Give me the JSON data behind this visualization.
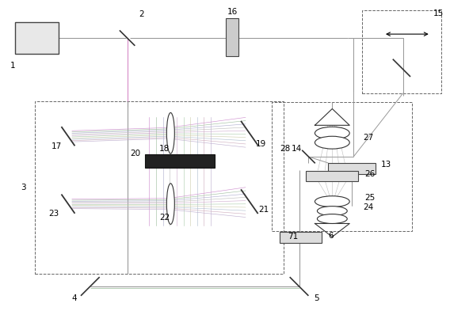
{
  "fig_width": 5.68,
  "fig_height": 4.12,
  "dpi": 100,
  "bg_color": "#ffffff",
  "lc": "#555555",
  "beam_colors": [
    "#cc88cc",
    "#99bb99",
    "#aaaacc",
    "#bbbbbb",
    "#ccaacc",
    "#aaccaa",
    "#ccccaa",
    "#aabbcc",
    "#ccaabb",
    "#bbaacc"
  ]
}
